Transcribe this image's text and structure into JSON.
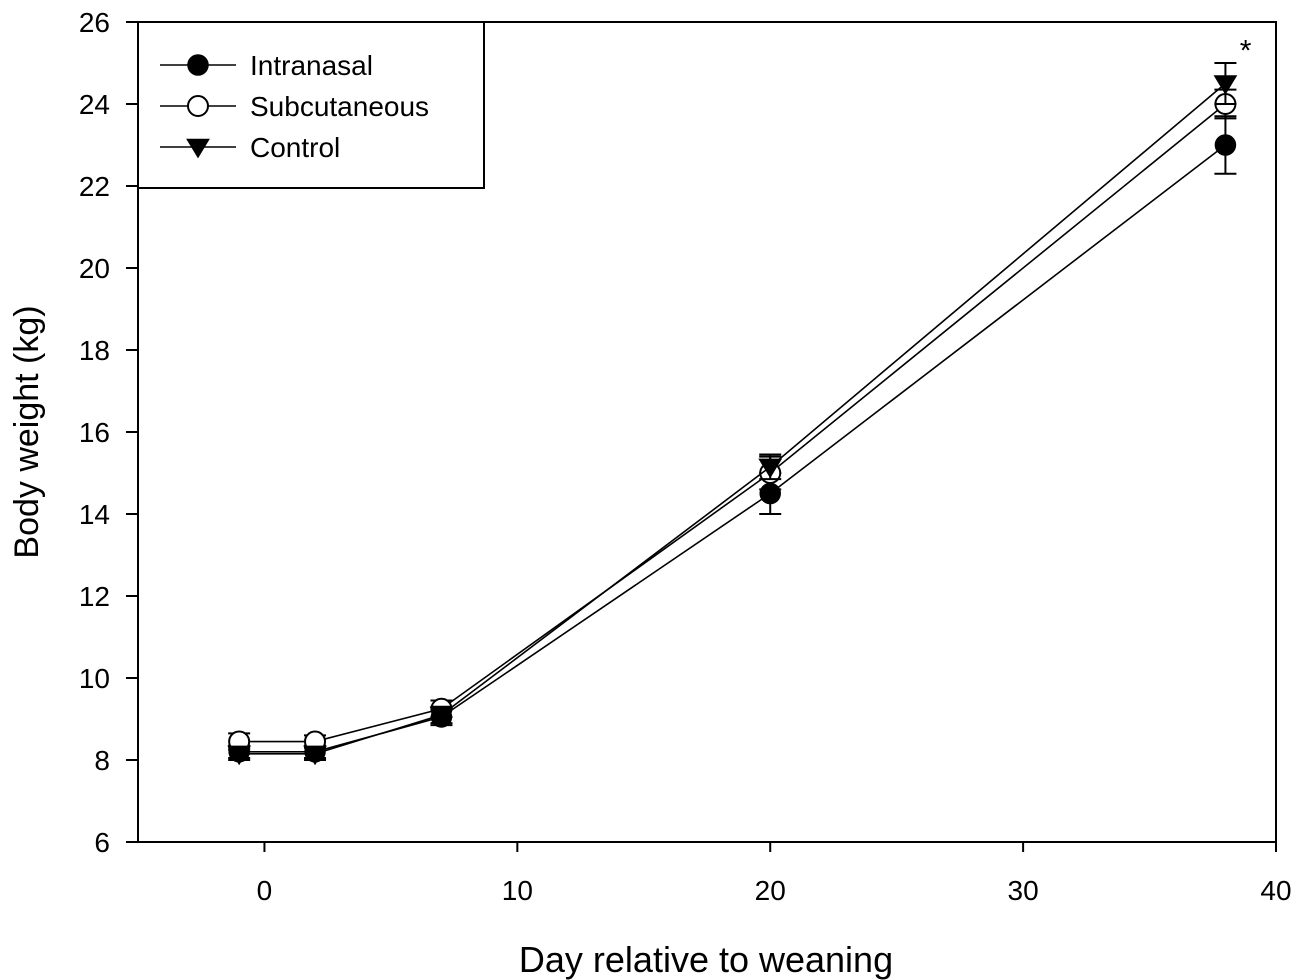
{
  "chart_data": {
    "type": "line",
    "xlabel": "Day relative to weaning",
    "ylabel": "Body weight (kg)",
    "xlim": [
      -5,
      40
    ],
    "ylim": [
      6,
      26
    ],
    "xticks": [
      0,
      10,
      20,
      30,
      40
    ],
    "yticks": [
      6,
      8,
      10,
      12,
      14,
      16,
      18,
      20,
      22,
      24,
      26
    ],
    "grid": false,
    "legend_position": "top-left",
    "x": [
      -1,
      2,
      7,
      20,
      38
    ],
    "series": [
      {
        "name": "Intranasal",
        "marker": "filled-circle",
        "values": [
          8.2,
          8.2,
          9.05,
          14.5,
          23.0
        ],
        "errors": [
          0.15,
          0.15,
          0.2,
          0.5,
          0.7
        ]
      },
      {
        "name": "Subcutaneous",
        "marker": "open-circle",
        "values": [
          8.45,
          8.45,
          9.25,
          15.0,
          24.0
        ],
        "errors": [
          0.2,
          0.15,
          0.2,
          0.4,
          0.35
        ]
      },
      {
        "name": "Control",
        "marker": "filled-triangle-down",
        "values": [
          8.15,
          8.15,
          9.1,
          15.15,
          24.5
        ],
        "errors": [
          0.15,
          0.15,
          0.2,
          0.3,
          0.5
        ]
      }
    ],
    "annotations": [
      {
        "text": "*",
        "x": 38.8,
        "y": 25.3
      }
    ]
  }
}
